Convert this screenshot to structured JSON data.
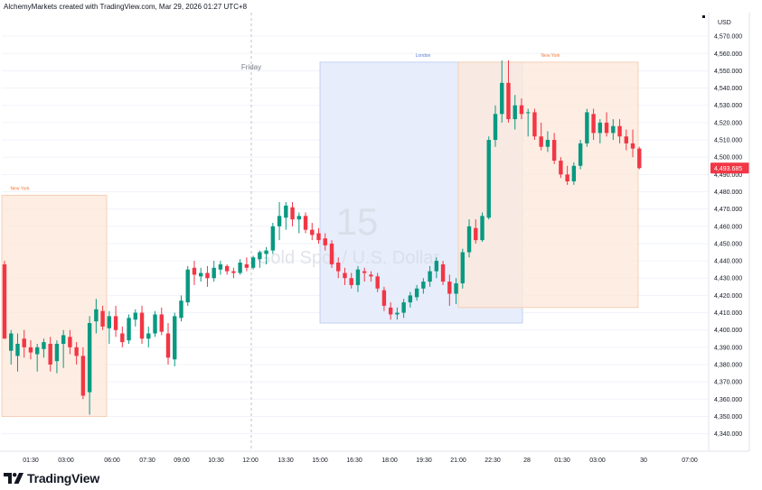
{
  "header": {
    "attribution": "AlchemyMarkets created with TradingView.com, Mar 29, 2026 01:27 UTC+8"
  },
  "footer": {
    "brand": "TradingView"
  },
  "watermark": {
    "interval": "15",
    "symbol": "Gold Spot / U.S. Dollar"
  },
  "sessions": [
    {
      "label": "New York",
      "fill": "#fde9dc",
      "stroke": "#f6c6a6",
      "label_color": "#f57c3b"
    },
    {
      "label": "London",
      "fill": "#e6ecfb",
      "stroke": "#b8c8f0",
      "label_color": "#5b7ad6"
    },
    {
      "label": "New York",
      "fill": "#fde9dc",
      "stroke": "#f6c6a6",
      "label_color": "#f57c3b"
    }
  ],
  "day_marker": {
    "label": "Friday"
  },
  "colors": {
    "up": "#089981",
    "down": "#f23645",
    "grid": "#f0f3fa",
    "axis_text": "#131722",
    "price_tag_bg": "#f23645"
  },
  "chart_data": {
    "type": "candlestick",
    "ylabel": "USD",
    "ylim": [
      4333,
      4581
    ],
    "y_ticks": [
      4340,
      4350,
      4360,
      4370,
      4380,
      4390,
      4400,
      4410,
      4420,
      4430,
      4440,
      4450,
      4460,
      4470,
      4480,
      4490,
      4500,
      4510,
      4520,
      4530,
      4540,
      4550,
      4560,
      4570
    ],
    "y_tick_labels": [
      "4,340.000",
      "4,350.000",
      "4,360.000",
      "4,370.000",
      "4,380.000",
      "4,390.000",
      "4,400.000",
      "4,410.000",
      "4,420.000",
      "4,430.000",
      "4,440.000",
      "4,450.000",
      "4,460.000",
      "4,470.000",
      "4,480.000",
      "4,490.000",
      "4,500.000",
      "4,510.000",
      "4,520.000",
      "4,530.000",
      "4,540.000",
      "4,550.000",
      "4,560.000",
      "4,570.000"
    ],
    "x_tick_labels": [
      "01:30",
      "03:00",
      "06:00",
      "07:30",
      "09:00",
      "10:30",
      "12:00",
      "13:30",
      "15:00",
      "16:30",
      "18:00",
      "19:30",
      "21:00",
      "22:30",
      "28",
      "01:30",
      "03:00",
      "30",
      "07:00"
    ],
    "last_price": {
      "value": 4493.685,
      "label": "4,493.685"
    },
    "candles": [
      {
        "o": 4438,
        "h": 4440,
        "l": 4395,
        "c": 4395
      },
      {
        "o": 4388,
        "h": 4400,
        "l": 4380,
        "c": 4398
      },
      {
        "o": 4385,
        "h": 4398,
        "l": 4376,
        "c": 4392
      },
      {
        "o": 4395,
        "h": 4400,
        "l": 4384,
        "c": 4390
      },
      {
        "o": 4390,
        "h": 4394,
        "l": 4383,
        "c": 4387
      },
      {
        "o": 4386,
        "h": 4392,
        "l": 4376,
        "c": 4390
      },
      {
        "o": 4389,
        "h": 4395,
        "l": 4384,
        "c": 4393
      },
      {
        "o": 4392,
        "h": 4396,
        "l": 4376,
        "c": 4380
      },
      {
        "o": 4382,
        "h": 4394,
        "l": 4375,
        "c": 4392
      },
      {
        "o": 4392,
        "h": 4400,
        "l": 4378,
        "c": 4397
      },
      {
        "o": 4396,
        "h": 4400,
        "l": 4386,
        "c": 4390
      },
      {
        "o": 4390,
        "h": 4393,
        "l": 4380,
        "c": 4385
      },
      {
        "o": 4385,
        "h": 4390,
        "l": 4360,
        "c": 4362
      },
      {
        "o": 4364,
        "h": 4408,
        "l": 4351,
        "c": 4404
      },
      {
        "o": 4405,
        "h": 4418,
        "l": 4398,
        "c": 4412
      },
      {
        "o": 4411,
        "h": 4414,
        "l": 4400,
        "c": 4402
      },
      {
        "o": 4401,
        "h": 4411,
        "l": 4392,
        "c": 4408
      },
      {
        "o": 4408,
        "h": 4414,
        "l": 4396,
        "c": 4400
      },
      {
        "o": 4398,
        "h": 4402,
        "l": 4390,
        "c": 4393
      },
      {
        "o": 4394,
        "h": 4409,
        "l": 4392,
        "c": 4407
      },
      {
        "o": 4406,
        "h": 4412,
        "l": 4402,
        "c": 4410
      },
      {
        "o": 4410,
        "h": 4414,
        "l": 4392,
        "c": 4395
      },
      {
        "o": 4395,
        "h": 4402,
        "l": 4390,
        "c": 4398
      },
      {
        "o": 4398,
        "h": 4411,
        "l": 4396,
        "c": 4409
      },
      {
        "o": 4409,
        "h": 4413,
        "l": 4397,
        "c": 4399
      },
      {
        "o": 4398,
        "h": 4404,
        "l": 4380,
        "c": 4384
      },
      {
        "o": 4383,
        "h": 4410,
        "l": 4379,
        "c": 4408
      },
      {
        "o": 4407,
        "h": 4420,
        "l": 4405,
        "c": 4417
      },
      {
        "o": 4416,
        "h": 4437,
        "l": 4414,
        "c": 4435
      },
      {
        "o": 4436,
        "h": 4440,
        "l": 4426,
        "c": 4432
      },
      {
        "o": 4431,
        "h": 4436,
        "l": 4428,
        "c": 4433
      },
      {
        "o": 4433,
        "h": 4437,
        "l": 4425,
        "c": 4430
      },
      {
        "o": 4430,
        "h": 4440,
        "l": 4428,
        "c": 4436
      },
      {
        "o": 4435,
        "h": 4440,
        "l": 4432,
        "c": 4438
      },
      {
        "o": 4437,
        "h": 4438,
        "l": 4432,
        "c": 4434
      },
      {
        "o": 4434,
        "h": 4436,
        "l": 4430,
        "c": 4433
      },
      {
        "o": 4433,
        "h": 4441,
        "l": 4432,
        "c": 4439
      },
      {
        "o": 4438,
        "h": 4442,
        "l": 4434,
        "c": 4436
      },
      {
        "o": 4436,
        "h": 4443,
        "l": 4435,
        "c": 4442
      },
      {
        "o": 4441,
        "h": 4446,
        "l": 4436,
        "c": 4445
      },
      {
        "o": 4444,
        "h": 4448,
        "l": 4438,
        "c": 4446
      },
      {
        "o": 4446,
        "h": 4462,
        "l": 4444,
        "c": 4460
      },
      {
        "o": 4460,
        "h": 4474,
        "l": 4452,
        "c": 4466
      },
      {
        "o": 4465,
        "h": 4474,
        "l": 4458,
        "c": 4472
      },
      {
        "o": 4471,
        "h": 4474,
        "l": 4460,
        "c": 4464
      },
      {
        "o": 4464,
        "h": 4468,
        "l": 4456,
        "c": 4466
      },
      {
        "o": 4466,
        "h": 4468,
        "l": 4456,
        "c": 4458
      },
      {
        "o": 4458,
        "h": 4462,
        "l": 4452,
        "c": 4455
      },
      {
        "o": 4456,
        "h": 4459,
        "l": 4450,
        "c": 4452
      },
      {
        "o": 4453,
        "h": 4456,
        "l": 4446,
        "c": 4449
      },
      {
        "o": 4450,
        "h": 4452,
        "l": 4436,
        "c": 4438
      },
      {
        "o": 4439,
        "h": 4442,
        "l": 4430,
        "c": 4434
      },
      {
        "o": 4433,
        "h": 4436,
        "l": 4426,
        "c": 4430
      },
      {
        "o": 4430,
        "h": 4433,
        "l": 4424,
        "c": 4426
      },
      {
        "o": 4426,
        "h": 4437,
        "l": 4422,
        "c": 4435
      },
      {
        "o": 4434,
        "h": 4436,
        "l": 4428,
        "c": 4433
      },
      {
        "o": 4432,
        "h": 4434,
        "l": 4428,
        "c": 4431
      },
      {
        "o": 4431,
        "h": 4433,
        "l": 4422,
        "c": 4424
      },
      {
        "o": 4423,
        "h": 4425,
        "l": 4411,
        "c": 4414
      },
      {
        "o": 4413,
        "h": 4416,
        "l": 4406,
        "c": 4409
      },
      {
        "o": 4409,
        "h": 4413,
        "l": 4406,
        "c": 4410
      },
      {
        "o": 4410,
        "h": 4418,
        "l": 4407,
        "c": 4416
      },
      {
        "o": 4416,
        "h": 4422,
        "l": 4413,
        "c": 4420
      },
      {
        "o": 4419,
        "h": 4426,
        "l": 4417,
        "c": 4424
      },
      {
        "o": 4424,
        "h": 4430,
        "l": 4421,
        "c": 4428
      },
      {
        "o": 4428,
        "h": 4437,
        "l": 4425,
        "c": 4434
      },
      {
        "o": 4434,
        "h": 4442,
        "l": 4430,
        "c": 4440
      },
      {
        "o": 4438,
        "h": 4440,
        "l": 4426,
        "c": 4428
      },
      {
        "o": 4428,
        "h": 4432,
        "l": 4414,
        "c": 4421
      },
      {
        "o": 4421,
        "h": 4430,
        "l": 4415,
        "c": 4427
      },
      {
        "o": 4427,
        "h": 4447,
        "l": 4424,
        "c": 4445
      },
      {
        "o": 4445,
        "h": 4464,
        "l": 4442,
        "c": 4460
      },
      {
        "o": 4459,
        "h": 4464,
        "l": 4450,
        "c": 4452
      },
      {
        "o": 4452,
        "h": 4468,
        "l": 4451,
        "c": 4466
      },
      {
        "o": 4465,
        "h": 4512,
        "l": 4464,
        "c": 4510
      },
      {
        "o": 4510,
        "h": 4530,
        "l": 4506,
        "c": 4525
      },
      {
        "o": 4525,
        "h": 4556,
        "l": 4520,
        "c": 4543
      },
      {
        "o": 4543,
        "h": 4556,
        "l": 4520,
        "c": 4522
      },
      {
        "o": 4522,
        "h": 4536,
        "l": 4516,
        "c": 4530
      },
      {
        "o": 4530,
        "h": 4534,
        "l": 4522,
        "c": 4525
      },
      {
        "o": 4526,
        "h": 4528,
        "l": 4512,
        "c": 4526
      },
      {
        "o": 4526,
        "h": 4528,
        "l": 4510,
        "c": 4512
      },
      {
        "o": 4512,
        "h": 4520,
        "l": 4504,
        "c": 4506
      },
      {
        "o": 4506,
        "h": 4515,
        "l": 4503,
        "c": 4510
      },
      {
        "o": 4510,
        "h": 4514,
        "l": 4496,
        "c": 4498
      },
      {
        "o": 4498,
        "h": 4500,
        "l": 4488,
        "c": 4490
      },
      {
        "o": 4490,
        "h": 4495,
        "l": 4484,
        "c": 4486
      },
      {
        "o": 4486,
        "h": 4497,
        "l": 4484,
        "c": 4495
      },
      {
        "o": 4495,
        "h": 4510,
        "l": 4493,
        "c": 4508
      },
      {
        "o": 4508,
        "h": 4528,
        "l": 4506,
        "c": 4526
      },
      {
        "o": 4525,
        "h": 4528,
        "l": 4510,
        "c": 4514
      },
      {
        "o": 4514,
        "h": 4522,
        "l": 4508,
        "c": 4520
      },
      {
        "o": 4520,
        "h": 4526,
        "l": 4512,
        "c": 4514
      },
      {
        "o": 4514,
        "h": 4522,
        "l": 4510,
        "c": 4518
      },
      {
        "o": 4518,
        "h": 4522,
        "l": 4508,
        "c": 4512
      },
      {
        "o": 4512,
        "h": 4516,
        "l": 4504,
        "c": 4508
      },
      {
        "o": 4508,
        "h": 4516,
        "l": 4500,
        "c": 4505
      },
      {
        "o": 4505,
        "h": 4506,
        "l": 4493,
        "c": 4493.685
      }
    ]
  }
}
